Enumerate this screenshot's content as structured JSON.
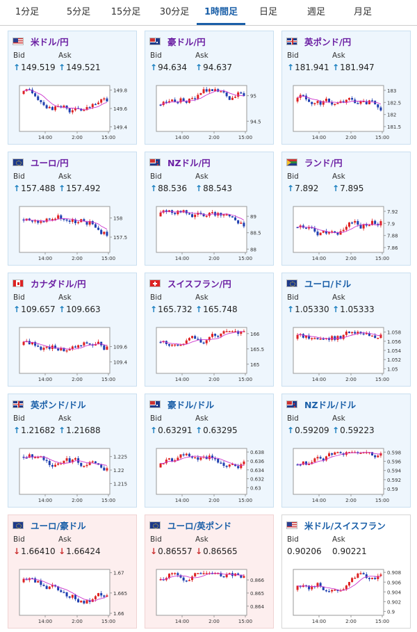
{
  "tabs": [
    {
      "label": "1分足",
      "active": false
    },
    {
      "label": "5分足",
      "active": false
    },
    {
      "label": "15分足",
      "active": false
    },
    {
      "label": "30分足",
      "active": false
    },
    {
      "label": "1時間足",
      "active": true
    },
    {
      "label": "日足",
      "active": false
    },
    {
      "label": "週足",
      "active": false
    },
    {
      "label": "月足",
      "active": false
    }
  ],
  "labels": {
    "bid": "Bid",
    "ask": "Ask",
    "x_ticks": [
      "14:00",
      "2:00",
      "15:00"
    ]
  },
  "colors": {
    "up_arrow": "#1a7fbf",
    "down_arrow": "#cc3333",
    "candle_up": "#dd2222",
    "candle_down": "#1f3fb0",
    "ma": "#cc33cc"
  },
  "cards": [
    {
      "name": "米ドル/円",
      "flag": "us",
      "bid": "149.519",
      "ask": "149.521",
      "dir": "up",
      "theme": "purple",
      "chart": {
        "y_ticks": [
          "149.8",
          "149.6",
          "149.4"
        ],
        "ylim": [
          149.35,
          149.85
        ]
      }
    },
    {
      "name": "豪ドル/円",
      "flag": "au",
      "bid": "94.634",
      "ask": "94.637",
      "dir": "up",
      "theme": "purple",
      "chart": {
        "y_ticks": [
          "95",
          "94.5"
        ],
        "ylim": [
          94.3,
          95.2
        ]
      }
    },
    {
      "name": "英ポンド/円",
      "flag": "gb",
      "bid": "181.941",
      "ask": "181.947",
      "dir": "up",
      "theme": "purple",
      "chart": {
        "y_ticks": [
          "183",
          "182.5",
          "182",
          "181.5"
        ],
        "ylim": [
          181.3,
          183.2
        ]
      }
    },
    {
      "name": "ユーロ/円",
      "flag": "eu",
      "bid": "157.488",
      "ask": "157.492",
      "dir": "up",
      "theme": "purple",
      "chart": {
        "y_ticks": [
          "158",
          "157.5"
        ],
        "ylim": [
          157.1,
          158.3
        ]
      }
    },
    {
      "name": "NZドル/円",
      "flag": "nz",
      "bid": "88.536",
      "ask": "88.543",
      "dir": "up",
      "theme": "purple",
      "chart": {
        "y_ticks": [
          "89",
          "88.5",
          "88"
        ],
        "ylim": [
          87.9,
          89.3
        ]
      }
    },
    {
      "name": "ランド/円",
      "flag": "za",
      "bid": "7.892",
      "ask": "7.895",
      "dir": "up",
      "theme": "purple",
      "chart": {
        "y_ticks": [
          "7.92",
          "7.9",
          "7.88",
          "7.86"
        ],
        "ylim": [
          7.852,
          7.928
        ]
      }
    },
    {
      "name": "カナダドル/円",
      "flag": "ca",
      "bid": "109.657",
      "ask": "109.663",
      "dir": "up",
      "theme": "purple",
      "chart": {
        "y_ticks": [
          "109.6",
          "109.4"
        ],
        "ylim": [
          109.25,
          109.85
        ]
      }
    },
    {
      "name": "スイスフラン/円",
      "flag": "ch",
      "bid": "165.732",
      "ask": "165.748",
      "dir": "up",
      "theme": "purple",
      "chart": {
        "y_ticks": [
          "166",
          "165.5",
          "165"
        ],
        "ylim": [
          164.7,
          166.2
        ]
      }
    },
    {
      "name": "ユーロ/ドル",
      "flag": "eu",
      "bid": "1.05330",
      "ask": "1.05333",
      "dir": "up",
      "theme": "blue",
      "chart": {
        "y_ticks": [
          "1.058",
          "1.056",
          "1.054",
          "1.052",
          "1.05"
        ],
        "ylim": [
          1.049,
          1.059
        ]
      }
    },
    {
      "name": "英ポンド/ドル",
      "flag": "gb",
      "bid": "1.21682",
      "ask": "1.21688",
      "dir": "up",
      "theme": "blue",
      "chart": {
        "y_ticks": [
          "1.225",
          "1.22",
          "1.215"
        ],
        "ylim": [
          1.211,
          1.228
        ]
      }
    },
    {
      "name": "豪ドル/ドル",
      "flag": "au",
      "bid": "0.63291",
      "ask": "0.63295",
      "dir": "up",
      "theme": "blue",
      "chart": {
        "y_ticks": [
          "0.638",
          "0.636",
          "0.634",
          "0.632",
          "0.63"
        ],
        "ylim": [
          0.6285,
          0.6388
        ]
      }
    },
    {
      "name": "NZドル/ドル",
      "flag": "nz",
      "bid": "0.59209",
      "ask": "0.59223",
      "dir": "up",
      "theme": "blue",
      "chart": {
        "y_ticks": [
          "0.598",
          "0.596",
          "0.594",
          "0.592",
          "0.59"
        ],
        "ylim": [
          0.5888,
          0.5988
        ]
      }
    },
    {
      "name": "ユーロ/豪ドル",
      "flag": "eu",
      "bid": "1.66410",
      "ask": "1.66424",
      "dir": "down",
      "theme": "blue",
      "chart": {
        "y_ticks": [
          "1.67",
          "1.665",
          "1.66"
        ],
        "ylim": [
          1.6595,
          1.6708
        ]
      }
    },
    {
      "name": "ユーロ/英ポンド",
      "flag": "eu",
      "bid": "0.86557",
      "ask": "0.86565",
      "dir": "down",
      "theme": "blue",
      "chart": {
        "y_ticks": [
          "0.866",
          "0.865",
          "0.864"
        ],
        "ylim": [
          0.8633,
          0.8668
        ]
      }
    },
    {
      "name": "米ドル/スイスフラン",
      "flag": "us",
      "bid": "0.90206",
      "ask": "0.90221",
      "dir": "none",
      "theme": "blue",
      "chart": {
        "y_ticks": [
          "0.908",
          "0.906",
          "0.904",
          "0.902",
          "0.9"
        ],
        "ylim": [
          0.8992,
          0.9086
        ]
      }
    }
  ]
}
